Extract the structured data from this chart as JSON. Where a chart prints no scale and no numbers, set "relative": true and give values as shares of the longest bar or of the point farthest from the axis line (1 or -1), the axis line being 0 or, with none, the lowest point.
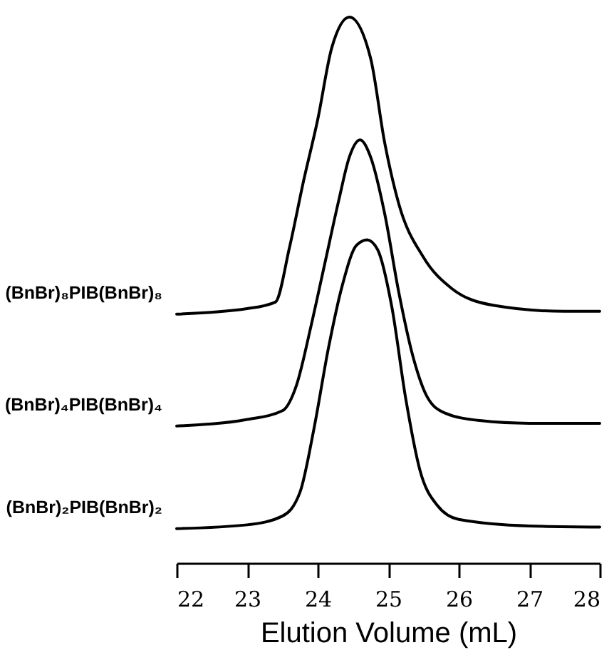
{
  "chart_data": {
    "type": "line",
    "xlabel": "Elution Volume (mL)",
    "relative": true,
    "xlim": [
      22,
      28
    ],
    "xticks": [
      22,
      23,
      24,
      25,
      26,
      27,
      28
    ],
    "grid": false,
    "tick_labels": "x",
    "series": [
      {
        "name": "(BnBr)₈PIB(BnBr)₈",
        "color": "#000000",
        "x": [
          22,
          23,
          23.4,
          23.6,
          23.8,
          24.0,
          24.2,
          24.45,
          24.75,
          24.95,
          25.15,
          25.5,
          25.9,
          26.5,
          27.5,
          28
        ],
        "values": [
          0.456,
          0.466,
          0.478,
          0.578,
          0.7,
          0.812,
          0.944,
          1.0,
          0.925,
          0.77,
          0.658,
          0.56,
          0.503,
          0.472,
          0.461,
          0.461
        ]
      },
      {
        "name": "(BnBr)₄PIB(BnBr)₄",
        "color": "#000000",
        "x": [
          22,
          23,
          23.5,
          23.7,
          23.9,
          24.1,
          24.3,
          24.45,
          24.6,
          24.75,
          24.95,
          25.15,
          25.35,
          25.55,
          25.8,
          26.3,
          27,
          28
        ],
        "values": [
          0.251,
          0.263,
          0.279,
          0.326,
          0.431,
          0.548,
          0.665,
          0.744,
          0.775,
          0.744,
          0.64,
          0.496,
          0.379,
          0.305,
          0.275,
          0.261,
          0.256,
          0.256
        ]
      },
      {
        "name": "(BnBr)₂PIB(BnBr)₂",
        "color": "#000000",
        "x": [
          22,
          23,
          23.5,
          23.75,
          23.95,
          24.15,
          24.35,
          24.55,
          24.7,
          24.85,
          25.05,
          25.25,
          25.45,
          25.7,
          26,
          27,
          28
        ],
        "values": [
          0.063,
          0.07,
          0.086,
          0.13,
          0.248,
          0.392,
          0.509,
          0.582,
          0.592,
          0.574,
          0.47,
          0.3,
          0.17,
          0.105,
          0.08,
          0.068,
          0.066
        ]
      }
    ]
  }
}
